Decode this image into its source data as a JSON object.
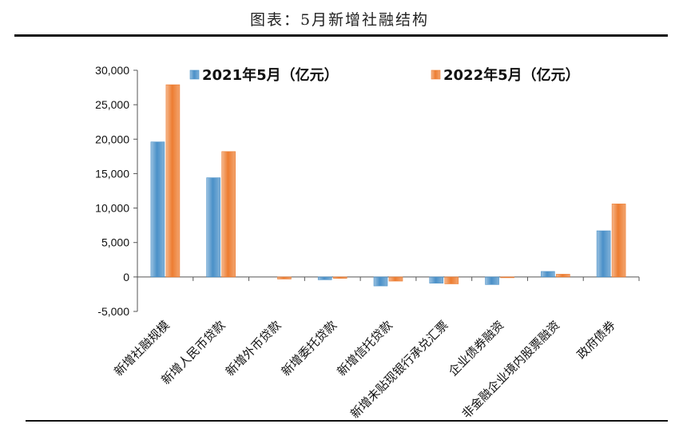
{
  "title": "图表：5月新增社融结构",
  "chart_data": {
    "type": "bar",
    "categories": [
      "新增社融规模",
      "新增人民币贷款",
      "新增外币贷款",
      "新增委托贷款",
      "新增信托贷款",
      "新增未贴现银行承兑汇票",
      "企业债券融资",
      "非金融企业境内股票融资",
      "政府债券"
    ],
    "series": [
      {
        "name": "2021年5月（亿元）",
        "color": "#4a90c8",
        "values": [
          19600,
          14400,
          0,
          -400,
          -1300,
          -900,
          -1100,
          800,
          6700
        ]
      },
      {
        "name": "2022年5月（亿元）",
        "color": "#ed7d31",
        "values": [
          27900,
          18200,
          -300,
          -200,
          -600,
          -1000,
          -100,
          400,
          10600
        ]
      }
    ],
    "yticks": [
      "30,000",
      "25,000",
      "20,000",
      "15,000",
      "10,000",
      "5,000",
      "0",
      "-5,000"
    ],
    "ylim": [
      -5000,
      30000
    ],
    "legend": "top",
    "grid": false
  }
}
